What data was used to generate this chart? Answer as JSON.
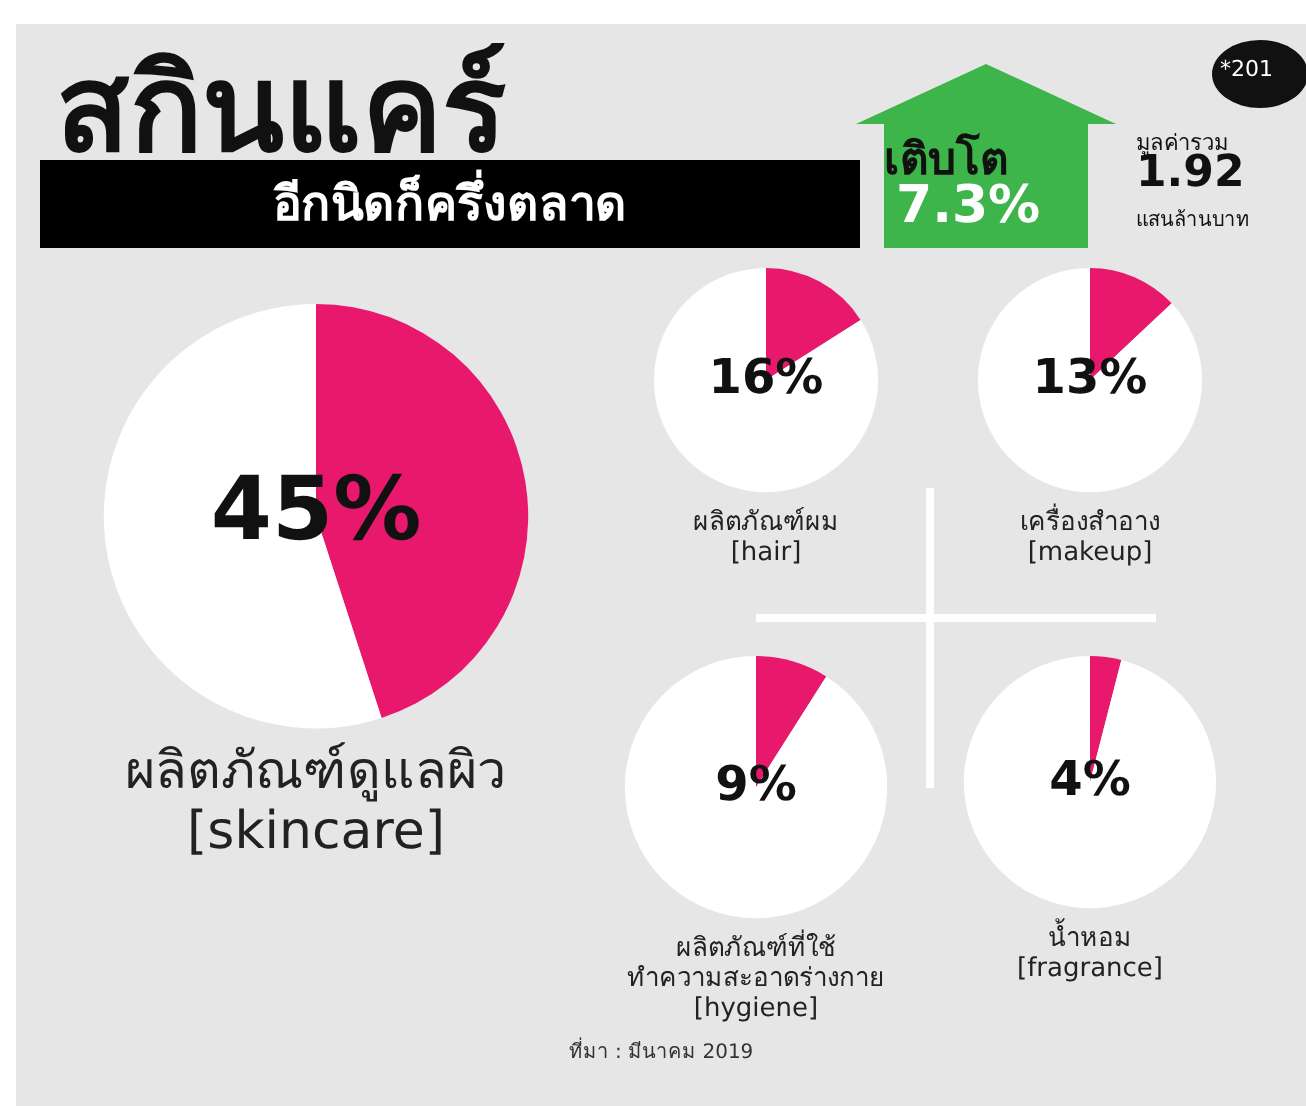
{
  "chart_data": [
    {
      "type": "other",
      "title": "สกินแคร์",
      "subtitle": "อีกนิดก็ครึ่งตลาด",
      "annotations": [
        "เติบโต",
        "7.3%",
        "*201",
        "มูลค่ารวม",
        "1.92",
        "แสนล้านบาท"
      ]
    },
    {
      "type": "pie",
      "title": "ผลิตภัณฑ์ดูแลผิว\n[skincare]",
      "categories": [
        null,
        null
      ],
      "values": [
        45,
        55
      ],
      "colors": [
        "#e8186d",
        "#ffffff"
      ],
      "value_labels": [
        "45%",
        null
      ]
    },
    {
      "type": "pie",
      "title": "ผลิตภัณฑ์ผม\n[hair]",
      "categories": [
        null,
        null
      ],
      "values": [
        16,
        84
      ],
      "colors": [
        "#e8186d",
        "#ffffff"
      ],
      "value_labels": [
        "16%",
        null
      ]
    },
    {
      "type": "pie",
      "title": "เครื่องสำอาง\n[makeup]",
      "categories": [
        null,
        null
      ],
      "values": [
        13,
        87
      ],
      "colors": [
        "#e8186d",
        "#ffffff"
      ],
      "value_labels": [
        "13%",
        null
      ]
    },
    {
      "type": "pie",
      "title": "ผลิตภัณฑ์ที่ใช้\nทำความสะอาดร่างกาย\n[hygiene]",
      "categories": [
        null,
        null
      ],
      "values": [
        9,
        91
      ],
      "colors": [
        "#e8186d",
        "#ffffff"
      ],
      "value_labels": [
        "9%",
        null
      ]
    },
    {
      "type": "pie",
      "title": "น้ำหอม\n[fragrance]",
      "categories": [
        null,
        null
      ],
      "values": [
        4,
        96
      ],
      "colors": [
        "#e8186d",
        "#ffffff"
      ],
      "value_labels": [
        "4%",
        null
      ]
    },
    {
      "type": "other",
      "annotations": [
        "ที่มา : มีนาคม 2019"
      ]
    }
  ]
}
